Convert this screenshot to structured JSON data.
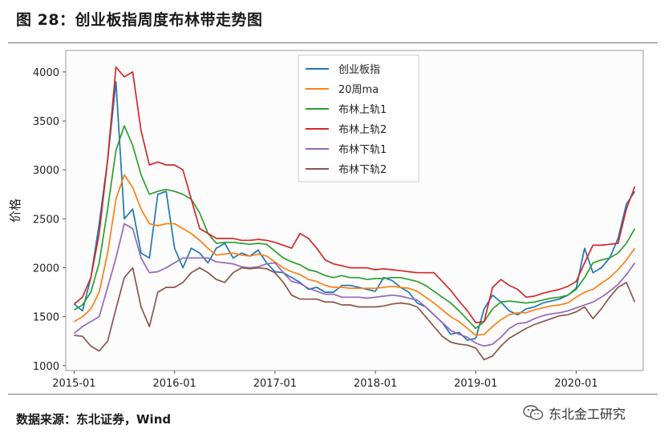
{
  "figure": {
    "title": "图 28：创业板指周度布林带走势图",
    "source": "数据来源：东北证券，Wind",
    "watermark": "东北金工研究",
    "watermark_icon": "wechat-icon"
  },
  "chart_data": {
    "type": "line",
    "xlabel": "",
    "ylabel": "价格",
    "x_ticks": [
      "2015-01",
      "2016-01",
      "2017-01",
      "2018-01",
      "2019-01",
      "2020-01"
    ],
    "x_range": [
      "2014-12",
      "2020-09"
    ],
    "y_ticks": [
      1000,
      1500,
      2000,
      2500,
      3000,
      3500,
      4000
    ],
    "ylim": [
      950,
      4220
    ],
    "grid": false,
    "legend_placement": "top-center",
    "x": [
      "2015-01",
      "2015-02",
      "2015-03",
      "2015-04",
      "2015-05",
      "2015-06",
      "2015-07",
      "2015-08",
      "2015-09",
      "2015-10",
      "2015-11",
      "2015-12",
      "2016-01",
      "2016-02",
      "2016-03",
      "2016-04",
      "2016-05",
      "2016-06",
      "2016-07",
      "2016-08",
      "2016-09",
      "2016-10",
      "2016-11",
      "2016-12",
      "2017-01",
      "2017-02",
      "2017-03",
      "2017-04",
      "2017-05",
      "2017-06",
      "2017-07",
      "2017-08",
      "2017-09",
      "2017-10",
      "2017-11",
      "2017-12",
      "2018-01",
      "2018-02",
      "2018-03",
      "2018-04",
      "2018-05",
      "2018-06",
      "2018-07",
      "2018-08",
      "2018-09",
      "2018-10",
      "2018-11",
      "2018-12",
      "2019-01",
      "2019-02",
      "2019-03",
      "2019-04",
      "2019-05",
      "2019-06",
      "2019-07",
      "2019-08",
      "2019-09",
      "2019-10",
      "2019-11",
      "2019-12",
      "2020-01",
      "2020-02",
      "2020-03",
      "2020-04",
      "2020-05",
      "2020-06",
      "2020-07",
      "2020-08"
    ],
    "series": [
      {
        "name": "创业板指",
        "color": "#1f77b4",
        "values": [
          1630,
          1560,
          1900,
          2450,
          3100,
          3900,
          2500,
          2600,
          2150,
          2100,
          2750,
          2780,
          2200,
          2000,
          2200,
          2150,
          2050,
          2200,
          2250,
          2100,
          2150,
          2120,
          2180,
          2050,
          1960,
          1950,
          1900,
          1850,
          1780,
          1800,
          1750,
          1750,
          1820,
          1820,
          1800,
          1780,
          1760,
          1900,
          1870,
          1800,
          1750,
          1640,
          1600,
          1520,
          1440,
          1320,
          1340,
          1260,
          1280,
          1580,
          1720,
          1650,
          1560,
          1520,
          1580,
          1600,
          1640,
          1660,
          1680,
          1720,
          1790,
          2200,
          1950,
          2000,
          2100,
          2300,
          2650,
          2780
        ]
      },
      {
        "name": "20周ma",
        "color": "#ff7f0e",
        "values": [
          1450,
          1500,
          1580,
          1750,
          2150,
          2700,
          2950,
          2820,
          2600,
          2450,
          2430,
          2450,
          2450,
          2400,
          2350,
          2280,
          2200,
          2130,
          2140,
          2150,
          2130,
          2120,
          2140,
          2120,
          2060,
          2000,
          1960,
          1930,
          1880,
          1860,
          1820,
          1800,
          1800,
          1790,
          1790,
          1790,
          1790,
          1800,
          1810,
          1800,
          1790,
          1760,
          1700,
          1640,
          1570,
          1500,
          1450,
          1380,
          1310,
          1320,
          1400,
          1470,
          1520,
          1540,
          1540,
          1570,
          1590,
          1610,
          1620,
          1640,
          1700,
          1750,
          1780,
          1840,
          1900,
          1980,
          2080,
          2200
        ]
      },
      {
        "name": "布林上轨1",
        "color": "#2ca02c",
        "values": [
          1570,
          1620,
          1750,
          2050,
          2600,
          3200,
          3450,
          3250,
          2950,
          2750,
          2780,
          2800,
          2780,
          2750,
          2700,
          2560,
          2350,
          2250,
          2260,
          2260,
          2250,
          2240,
          2250,
          2240,
          2170,
          2100,
          2060,
          2030,
          1980,
          1960,
          1920,
          1900,
          1920,
          1900,
          1900,
          1880,
          1890,
          1890,
          1900,
          1900,
          1880,
          1860,
          1820,
          1760,
          1700,
          1640,
          1560,
          1470,
          1380,
          1450,
          1580,
          1650,
          1660,
          1650,
          1640,
          1650,
          1670,
          1690,
          1700,
          1720,
          1780,
          1900,
          2050,
          2080,
          2100,
          2150,
          2250,
          2400
        ]
      },
      {
        "name": "布林上轨2",
        "color": "#d62728",
        "values": [
          1630,
          1700,
          1900,
          2350,
          3100,
          4050,
          3950,
          4000,
          3400,
          3050,
          3080,
          3050,
          3050,
          3000,
          2700,
          2400,
          2350,
          2300,
          2300,
          2300,
          2280,
          2280,
          2290,
          2280,
          2260,
          2230,
          2200,
          2350,
          2300,
          2200,
          2080,
          2040,
          2020,
          2000,
          2000,
          2000,
          1980,
          1990,
          1980,
          1970,
          1960,
          1950,
          1950,
          1950,
          1860,
          1770,
          1660,
          1560,
          1440,
          1450,
          1800,
          1880,
          1820,
          1780,
          1700,
          1710,
          1740,
          1760,
          1780,
          1810,
          1860,
          2050,
          2230,
          2230,
          2240,
          2250,
          2600,
          2830
        ]
      },
      {
        "name": "布林下轨1",
        "color": "#9467bd",
        "values": [
          1330,
          1400,
          1450,
          1500,
          1800,
          2100,
          2450,
          2400,
          2100,
          1950,
          1960,
          2000,
          2050,
          2100,
          2100,
          2100,
          2100,
          2060,
          2050,
          2040,
          2010,
          2000,
          2010,
          2040,
          2050,
          1950,
          1860,
          1840,
          1790,
          1760,
          1730,
          1730,
          1700,
          1700,
          1700,
          1690,
          1700,
          1710,
          1720,
          1710,
          1690,
          1670,
          1600,
          1520,
          1440,
          1360,
          1320,
          1290,
          1230,
          1200,
          1220,
          1290,
          1380,
          1430,
          1440,
          1480,
          1510,
          1530,
          1540,
          1560,
          1590,
          1620,
          1650,
          1700,
          1760,
          1830,
          1930,
          2050
        ]
      },
      {
        "name": "布林下轨2",
        "color": "#8c564b",
        "values": [
          1310,
          1300,
          1200,
          1150,
          1250,
          1580,
          1900,
          2000,
          1600,
          1400,
          1750,
          1800,
          1800,
          1850,
          1950,
          2000,
          1950,
          1880,
          1850,
          1950,
          2000,
          1990,
          2000,
          1990,
          1950,
          1850,
          1720,
          1680,
          1680,
          1680,
          1650,
          1650,
          1620,
          1620,
          1600,
          1600,
          1600,
          1610,
          1630,
          1640,
          1630,
          1600,
          1500,
          1400,
          1300,
          1240,
          1220,
          1210,
          1180,
          1060,
          1100,
          1200,
          1280,
          1330,
          1380,
          1420,
          1450,
          1480,
          1510,
          1520,
          1550,
          1600,
          1480,
          1580,
          1700,
          1800,
          1850,
          1650
        ]
      }
    ]
  }
}
